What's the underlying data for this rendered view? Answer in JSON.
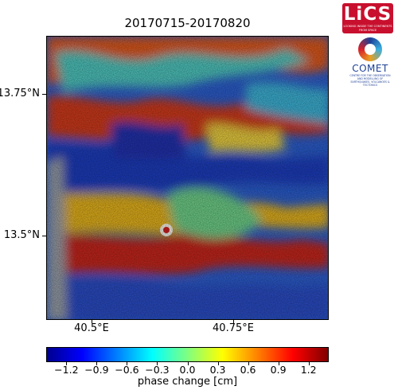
{
  "title": "20170715-20170820",
  "map": {
    "y_axis_labels": [
      "13.75°N",
      "13.5°N"
    ],
    "x_axis_labels": [
      "40.5°E",
      "40.75°E"
    ]
  },
  "colorbar": {
    "title": "phase change [cm]",
    "tick_labels": [
      "−1.2",
      "−0.9",
      "−0.6",
      "−0.3",
      "0.0",
      "0.3",
      "0.6",
      "0.9",
      "1.2"
    ],
    "colors": [
      "#00008f",
      "#0000ff",
      "#0080ff",
      "#00ffff",
      "#80ff80",
      "#ffff00",
      "#ff8000",
      "#ff0000",
      "#800000"
    ]
  },
  "logos": {
    "lics": {
      "name": "LiCS",
      "tagline": "LOOKING INSIDE THE CONTINENTS FROM SPACE"
    },
    "comet": {
      "name": "COMET",
      "tagline": "CENTRE FOR THE OBSERVATION AND MODELLING OF EARTHQUAKES, VOLCANOES & TECTONICS"
    }
  }
}
